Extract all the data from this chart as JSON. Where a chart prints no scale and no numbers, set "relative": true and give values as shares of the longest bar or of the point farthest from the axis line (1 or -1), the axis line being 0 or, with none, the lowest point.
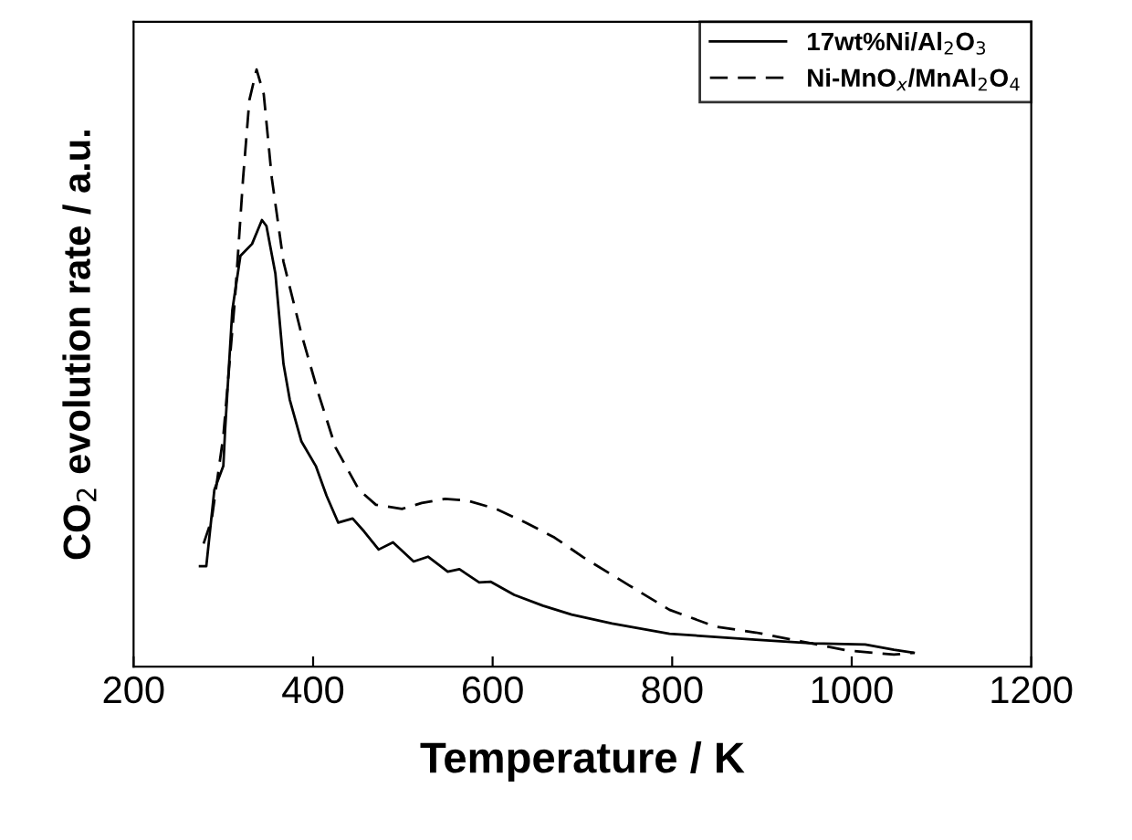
{
  "chart_data": {
    "type": "line",
    "relative": true,
    "xlabel": "Temperature / K",
    "ylabel": "CO$_{2}$ evolution rate / a.u.",
    "xlim": [
      200,
      1200
    ],
    "xticks": [
      200,
      400,
      600,
      800,
      1000,
      1200
    ],
    "grid": false,
    "legend": "top right",
    "marker": "none",
    "tick_labels": "x",
    "series": [
      {
        "name": "17wt%Ni/Al$_{2}$O$_{3}$",
        "color": "#000000",
        "line_style": "solid",
        "x": [
          274,
          281,
          290,
          300,
          302,
          310,
          319,
          332,
          343,
          348,
          358,
          367,
          374,
          387,
          403,
          415,
          428,
          444,
          457,
          473,
          489,
          512,
          528,
          550,
          563,
          585,
          598,
          624,
          656,
          688,
          733,
          797,
          893,
          957,
          1015,
          1047,
          1069
        ],
        "values": [
          0.168,
          0.168,
          0.296,
          0.336,
          0.397,
          0.597,
          0.688,
          0.708,
          0.748,
          0.738,
          0.658,
          0.507,
          0.447,
          0.377,
          0.336,
          0.286,
          0.241,
          0.248,
          0.226,
          0.196,
          0.208,
          0.176,
          0.184,
          0.159,
          0.163,
          0.141,
          0.142,
          0.12,
          0.102,
          0.087,
          0.072,
          0.055,
          0.045,
          0.039,
          0.037,
          0.028,
          0.023
        ]
      },
      {
        "name": "Ni-MnO$_{x}$/MnAl$_{2}$O$_{4}$",
        "color": "#000000",
        "line_style": "dashed",
        "x": [
          278,
          287,
          300,
          313,
          322,
          329,
          337,
          345,
          354,
          367,
          387,
          406,
          425,
          451,
          470,
          499,
          521,
          547,
          572,
          604,
          637,
          669,
          701,
          752,
          797,
          848,
          893,
          944,
          995,
          1047,
          1069
        ],
        "values": [
          0.206,
          0.246,
          0.386,
          0.617,
          0.818,
          0.949,
          1.0,
          0.959,
          0.818,
          0.678,
          0.557,
          0.457,
          0.367,
          0.296,
          0.271,
          0.264,
          0.274,
          0.281,
          0.278,
          0.264,
          0.241,
          0.216,
          0.183,
          0.136,
          0.095,
          0.067,
          0.057,
          0.042,
          0.027,
          0.02,
          0.023
        ]
      }
    ]
  }
}
